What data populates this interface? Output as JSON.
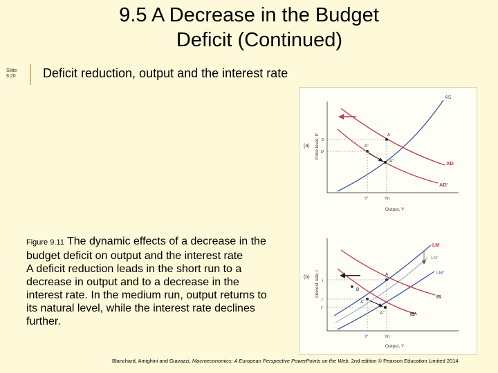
{
  "slide": {
    "title_line1": "9.5 A Decrease in the Budget",
    "title_line2": "Deficit (Continued)",
    "slide_label": "Slide",
    "slide_number": "9.20",
    "subtitle": "Deficit reduction, output and the interest rate"
  },
  "caption": {
    "figure_label": "Figure 9.11",
    "figure_title": "The dynamic effects of a decrease in the budget deficit on output and the interest rate",
    "body": "A deficit reduction leads in the short run to a decrease in output and to a decrease in the interest rate. In the medium run, output returns to its natural level, while the interest rate declines further."
  },
  "footer": {
    "authors": "Blanchard, Amighini and Giavazzi, ",
    "book": "Macroeconomics: A European Perspective PowerPoints on the Web",
    "edition": ", 2nd edition © Pearson Education Limited 2014"
  },
  "diagram": {
    "top_panel": {
      "panel_label": "(a)",
      "y_axis_label": "Price level, P",
      "x_axis_label": "Output, Y",
      "curves": {
        "as": "AS",
        "ad": "AD",
        "ad_new": "AD'"
      },
      "points": {
        "a": "A",
        "a_prime": "A'",
        "a_double_prime": "A''"
      },
      "y_ticks": {
        "p": "P",
        "p_prime": "P'"
      },
      "x_ticks": {
        "y_prime": "Y'",
        "y_n": "Yn"
      }
    },
    "bottom_panel": {
      "panel_label": "(b)",
      "y_axis_label": "Interest rate, i",
      "x_axis_label": "Output, Y",
      "curves": {
        "lm": "LM",
        "lm_prime": "LM'",
        "lm_double_prime": "LM''",
        "is": "IS",
        "is_prime": "IS'"
      },
      "points": {
        "a": "A",
        "a_prime": "A'",
        "a_double_prime": "A''",
        "b": "B"
      },
      "y_ticks": {
        "i": "i",
        "i_prime": "i'",
        "i_double_prime": "i''"
      },
      "x_ticks": {
        "y_prime": "Y'",
        "y_n": "Yn"
      }
    },
    "colors": {
      "as_lm": "#3a56a8",
      "ad_is": "#c23a4a",
      "arrow": "#c23a4a",
      "axis": "#555555"
    }
  }
}
